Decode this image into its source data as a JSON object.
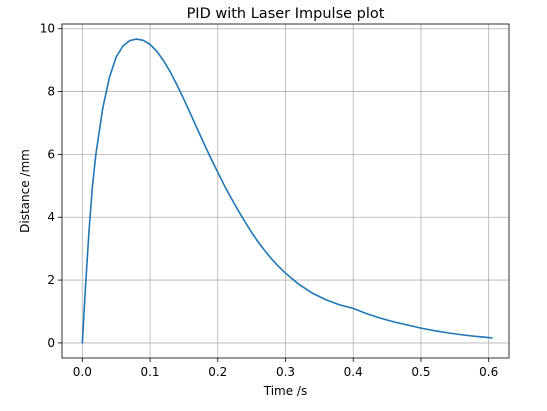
{
  "chart_data": {
    "type": "line",
    "title": "PID with Laser Impulse plot",
    "xlabel": "Time /s",
    "ylabel": "Distance /mm",
    "xlim": [
      -0.03,
      0.63
    ],
    "ylim": [
      -0.48,
      10.15
    ],
    "xticks": [
      0.0,
      0.1,
      0.2,
      0.3,
      0.4,
      0.5,
      0.6
    ],
    "xtick_labels": [
      "0.0",
      "0.1",
      "0.2",
      "0.3",
      "0.4",
      "0.5",
      "0.6"
    ],
    "yticks": [
      0,
      2,
      4,
      6,
      8,
      10
    ],
    "ytick_labels": [
      "0",
      "2",
      "4",
      "6",
      "8",
      "10"
    ],
    "grid": true,
    "legend": "none",
    "series": [
      {
        "color": "#1f77b4",
        "x": [
          0.0,
          0.005,
          0.01,
          0.015,
          0.02,
          0.03,
          0.04,
          0.05,
          0.06,
          0.07,
          0.08,
          0.09,
          0.1,
          0.11,
          0.12,
          0.13,
          0.14,
          0.15,
          0.16,
          0.17,
          0.18,
          0.19,
          0.2,
          0.21,
          0.22,
          0.23,
          0.24,
          0.25,
          0.26,
          0.27,
          0.28,
          0.29,
          0.3,
          0.32,
          0.34,
          0.36,
          0.38,
          0.4,
          0.42,
          0.44,
          0.46,
          0.48,
          0.5,
          0.52,
          0.54,
          0.56,
          0.58,
          0.6,
          0.605
        ],
        "y": [
          0.0,
          1.9,
          3.6,
          5.0,
          6.0,
          7.45,
          8.45,
          9.1,
          9.45,
          9.62,
          9.67,
          9.63,
          9.5,
          9.28,
          8.98,
          8.62,
          8.2,
          7.75,
          7.28,
          6.8,
          6.33,
          5.87,
          5.43,
          5.0,
          4.6,
          4.22,
          3.86,
          3.52,
          3.2,
          2.92,
          2.66,
          2.43,
          2.22,
          1.86,
          1.58,
          1.37,
          1.21,
          1.1,
          0.93,
          0.79,
          0.67,
          0.57,
          0.47,
          0.39,
          0.32,
          0.26,
          0.21,
          0.17,
          0.16
        ]
      }
    ]
  }
}
